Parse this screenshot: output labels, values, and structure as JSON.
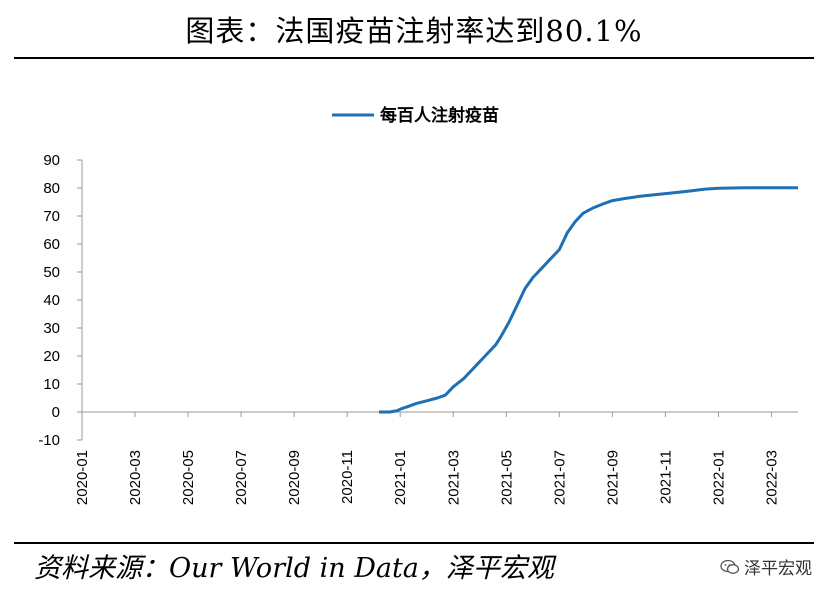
{
  "header": {
    "title": "图表：法国疫苗注射率达到80.1%"
  },
  "footer": {
    "source": "资料来源：Our World in Data，泽平宏观",
    "brand": "泽平宏观",
    "brand_icon": "wechat-icon"
  },
  "colors": {
    "series": "#1f6fb4",
    "axis": "#9a9a9a"
  },
  "chart_data": {
    "type": "line",
    "title": "",
    "xlabel": "",
    "ylabel": "",
    "ylim": [
      -10,
      90
    ],
    "yticks": [
      "90",
      "80",
      "70",
      "60",
      "50",
      "40",
      "30",
      "20",
      "10",
      "0",
      "-10"
    ],
    "xticks": [
      "2020-01",
      "2020-03",
      "2020-05",
      "2020-07",
      "2020-09",
      "2020-11",
      "2021-01",
      "2021-03",
      "2021-05",
      "2021-07",
      "2021-09",
      "2021-11",
      "2022-01",
      "2022-03"
    ],
    "xticks_index": [
      0,
      2,
      4,
      6,
      8,
      10,
      12,
      14,
      16,
      18,
      20,
      22,
      24,
      26
    ],
    "xrange": [
      0,
      27.0
    ],
    "grid": false,
    "legend_position": "top",
    "series": [
      {
        "name": "每百人注射疫苗",
        "x": [
          11.2,
          11.6,
          11.9,
          12.0,
          12.3,
          12.6,
          13.0,
          13.4,
          13.7,
          14.0,
          14.4,
          14.8,
          15.2,
          15.6,
          15.8,
          16.1,
          16.4,
          16.7,
          17.0,
          17.3,
          17.6,
          18.0,
          18.3,
          18.6,
          18.9,
          19.3,
          19.7,
          20.0,
          20.5,
          21.0,
          21.5,
          22.0,
          22.5,
          23.0,
          23.5,
          24.0,
          24.5,
          25.0,
          25.5,
          26.0,
          26.5,
          27.0
        ],
        "values": [
          0,
          0,
          0.5,
          1,
          2,
          3,
          4,
          5,
          6,
          9,
          12,
          16,
          20,
          24,
          27,
          32,
          38,
          44,
          48,
          51,
          54,
          58,
          64,
          68,
          71,
          73,
          74.5,
          75.5,
          76.3,
          77,
          77.5,
          78,
          78.5,
          79,
          79.6,
          79.9,
          80,
          80.1,
          80.1,
          80.1,
          80.1,
          80.1
        ]
      }
    ]
  }
}
